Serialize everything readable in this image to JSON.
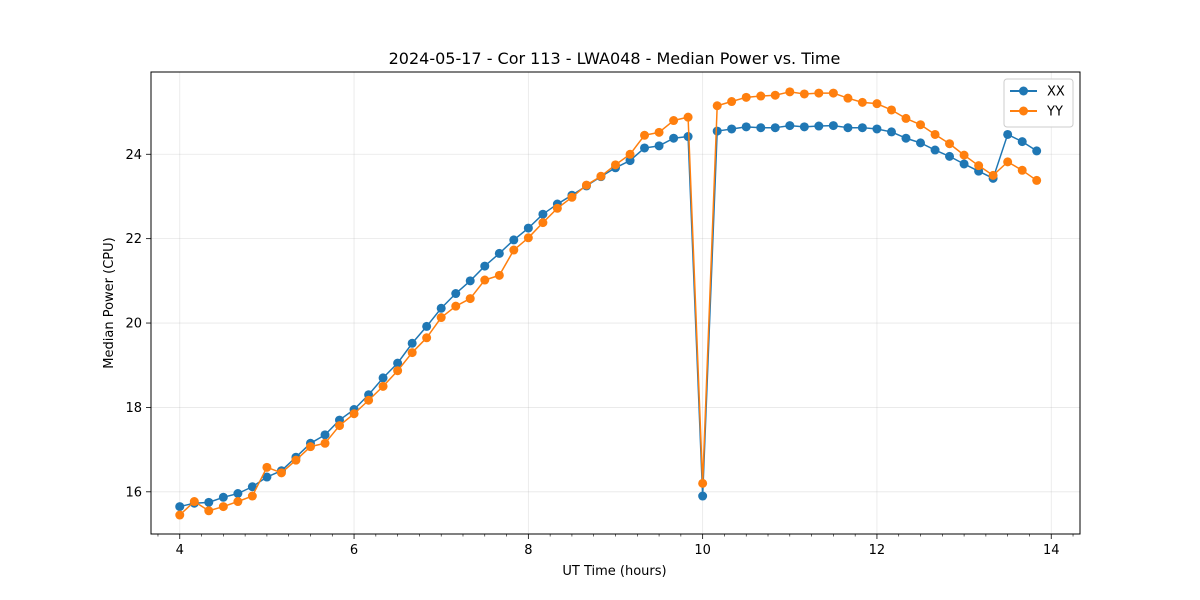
{
  "chart_data": {
    "type": "line",
    "title": "2024-05-17 - Cor 113 - LWA048 - Median Power vs. Time",
    "xlabel": "UT Time (hours)",
    "ylabel": "Median Power (CPU)",
    "xlim": [
      3.67,
      14.33
    ],
    "ylim": [
      15.0,
      25.95
    ],
    "xticks": [
      4,
      6,
      8,
      10,
      12,
      14
    ],
    "xtick_labels": [
      "4",
      "6",
      "8",
      "10",
      "12",
      "14"
    ],
    "yticks": [
      16,
      18,
      20,
      22,
      24
    ],
    "ytick_labels": [
      "16",
      "18",
      "20",
      "22",
      "24"
    ],
    "grid": true,
    "legend_position": "top-right",
    "x": [
      4.0,
      4.167,
      4.333,
      4.5,
      4.667,
      4.833,
      5.0,
      5.167,
      5.333,
      5.5,
      5.667,
      5.833,
      6.0,
      6.167,
      6.333,
      6.5,
      6.667,
      6.833,
      7.0,
      7.167,
      7.333,
      7.5,
      7.667,
      7.833,
      8.0,
      8.167,
      8.333,
      8.5,
      8.667,
      8.833,
      9.0,
      9.167,
      9.333,
      9.5,
      9.667,
      9.833,
      10.0,
      10.167,
      10.333,
      10.5,
      10.667,
      10.833,
      11.0,
      11.167,
      11.333,
      11.5,
      11.667,
      11.833,
      12.0,
      12.167,
      12.333,
      12.5,
      12.667,
      12.833,
      13.0,
      13.167,
      13.333,
      13.5,
      13.667,
      13.833
    ],
    "series": [
      {
        "name": "XX",
        "color": "#1f77b4",
        "values": [
          15.65,
          15.73,
          15.75,
          15.87,
          15.96,
          16.12,
          16.35,
          16.5,
          16.82,
          17.15,
          17.35,
          17.7,
          17.95,
          18.3,
          18.7,
          19.05,
          19.52,
          19.92,
          20.35,
          20.7,
          21.0,
          21.35,
          21.65,
          21.97,
          22.25,
          22.58,
          22.82,
          23.03,
          23.25,
          23.47,
          23.68,
          23.85,
          24.15,
          24.2,
          24.38,
          24.42,
          15.9,
          24.55,
          24.6,
          24.65,
          24.63,
          24.63,
          24.68,
          24.65,
          24.67,
          24.68,
          24.63,
          24.63,
          24.6,
          24.53,
          24.38,
          24.27,
          24.1,
          23.95,
          23.77,
          23.6,
          23.43,
          24.47,
          24.3,
          24.08
        ]
      },
      {
        "name": "YY",
        "color": "#ff7f0e",
        "values": [
          15.45,
          15.77,
          15.55,
          15.65,
          15.77,
          15.9,
          16.58,
          16.45,
          16.75,
          17.07,
          17.15,
          17.57,
          17.85,
          18.17,
          18.5,
          18.87,
          19.3,
          19.65,
          20.13,
          20.4,
          20.58,
          21.02,
          21.13,
          21.73,
          22.02,
          22.38,
          22.72,
          22.98,
          23.27,
          23.48,
          23.75,
          24.0,
          24.45,
          24.52,
          24.8,
          24.88,
          16.2,
          25.15,
          25.25,
          25.35,
          25.38,
          25.4,
          25.48,
          25.43,
          25.45,
          25.45,
          25.33,
          25.23,
          25.2,
          25.05,
          24.85,
          24.7,
          24.47,
          24.25,
          23.98,
          23.73,
          23.5,
          23.82,
          23.62,
          23.38
        ]
      }
    ]
  }
}
